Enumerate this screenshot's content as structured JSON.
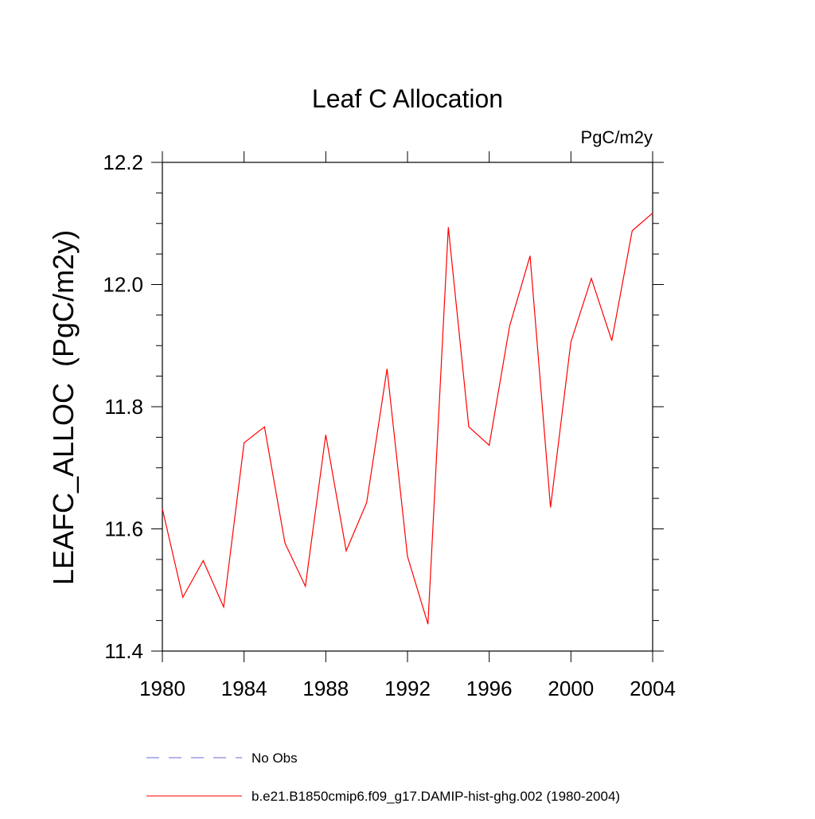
{
  "chart_data": {
    "type": "line",
    "title": "Leaf C Allocation",
    "units_label": "PgC/m2y",
    "ylabel": "LEAFC_ALLOC  (PgC/m2y)",
    "xlabel": "",
    "xlim": [
      1980,
      2004
    ],
    "ylim": [
      11.4,
      12.2
    ],
    "x_ticks": [
      1980,
      1984,
      1988,
      1992,
      1996,
      2000,
      2004
    ],
    "x_tick_labels": [
      "1980",
      "1984",
      "1988",
      "1992",
      "1996",
      "2000",
      "2004"
    ],
    "y_ticks": [
      11.4,
      11.6,
      11.8,
      12.0,
      12.2
    ],
    "y_tick_labels": [
      "11.4",
      "11.6",
      "11.8",
      "12.0",
      "12.2"
    ],
    "grid": false,
    "legend_position": "bottom",
    "series": [
      {
        "name": "b.e21.B1850cmip6.f09_g17.DAMIP-hist-ghg.002 (1980-2004)",
        "color": "#ff0000",
        "style": "solid",
        "x": [
          1980,
          1981,
          1982,
          1983,
          1984,
          1985,
          1986,
          1987,
          1988,
          1989,
          1990,
          1991,
          1992,
          1993,
          1994,
          1995,
          1996,
          1997,
          1998,
          1999,
          2000,
          2001,
          2002,
          2003,
          2004
        ],
        "values": [
          11.633,
          11.488,
          11.548,
          11.472,
          11.741,
          11.767,
          11.577,
          11.506,
          11.754,
          11.564,
          11.643,
          11.862,
          11.555,
          11.444,
          12.094,
          11.767,
          11.737,
          11.932,
          12.047,
          11.635,
          11.906,
          12.01,
          11.908,
          12.088,
          12.117
        ]
      }
    ],
    "legend": [
      {
        "label": "No Obs",
        "color": "#6a6ad0",
        "style": "dashed"
      },
      {
        "label": "b.e21.B1850cmip6.f09_g17.DAMIP-hist-ghg.002 (1980-2004)",
        "color": "#ff0000",
        "style": "solid"
      }
    ]
  }
}
